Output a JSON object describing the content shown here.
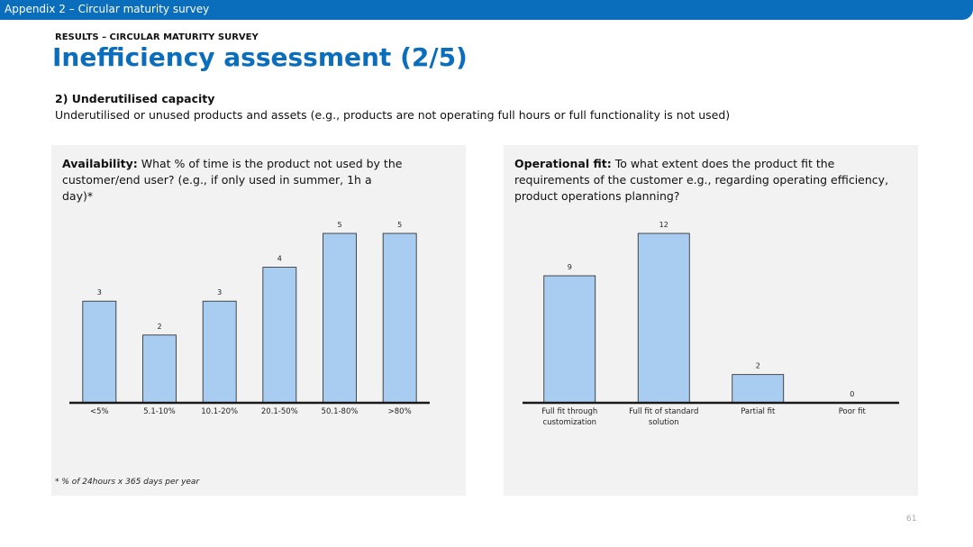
{
  "banner": "Appendix 2 – Circular maturity survey",
  "section": "RESULTS – CIRCULAR MATURITY SURVEY",
  "title": "Inefficiency assessment (2/5)",
  "heading": "2) Underutilised capacity",
  "description": "Underutilised or unused products and assets (e.g., products are not operating full hours or full functionality is not used)",
  "page_number": "61",
  "chart_data": [
    {
      "type": "bar",
      "title_label": "Availability:",
      "title": "What % of time is the product not used by the customer/end user? (e.g., if only used in summer, 1h a day)*",
      "categories": [
        "<5%",
        "5.1-10%",
        "10.1-20%",
        "20.1-50%",
        "50.1-80%",
        ">80%"
      ],
      "values": [
        3,
        2,
        3,
        4,
        5,
        5
      ],
      "color": "#a9cdf0",
      "footnote": "* % of 24hours x 365 days per year"
    },
    {
      "type": "bar",
      "title_label": "Operational fit:",
      "title": "To what extent does the product fit the requirements of the customer e.g., regarding operating efficiency, product operations planning?",
      "categories": [
        "Full fit through customization",
        "Full fit of standard solution",
        "Partial fit",
        "Poor fit"
      ],
      "values": [
        9,
        12,
        2,
        0
      ],
      "color": "#a9cdf0"
    }
  ]
}
